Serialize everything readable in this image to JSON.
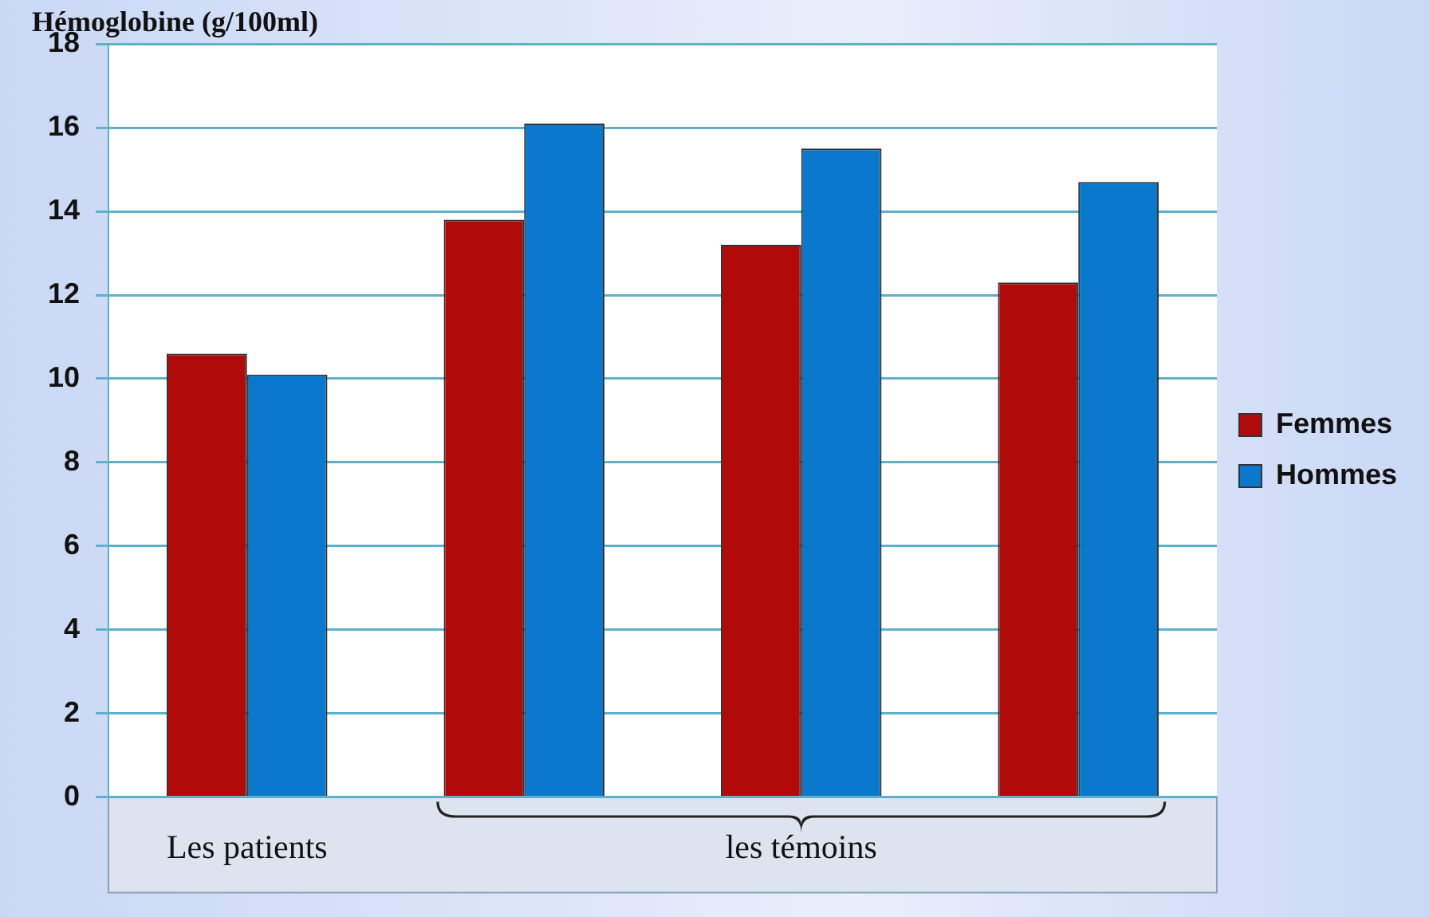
{
  "chart_data": {
    "type": "bar",
    "ylabel": "Hémoglobine (g/100ml)",
    "categories": [
      "Les patients",
      null,
      "les témoins",
      null
    ],
    "series": [
      {
        "name": "Femmes",
        "color": "#b00a0a",
        "values": [
          10.6,
          13.8,
          13.2,
          12.3
        ]
      },
      {
        "name": "Hommes",
        "color": "#0a78cc",
        "values": [
          10.1,
          16.1,
          15.5,
          14.7
        ]
      }
    ],
    "ylim": [
      0,
      18
    ],
    "yticks": [
      0,
      2,
      4,
      6,
      8,
      10,
      12,
      14,
      16,
      18
    ],
    "grid": "y",
    "legend": "right"
  }
}
